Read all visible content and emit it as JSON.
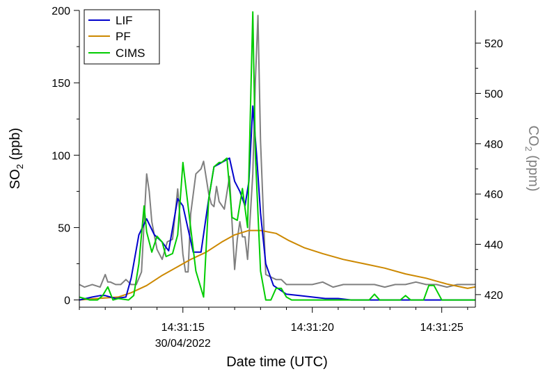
{
  "chart_data": {
    "type": "line",
    "xlabel": "Date time (UTC)",
    "x_ticks": [
      {
        "t": 15,
        "label": "14:31:15",
        "sublabel": "30/04/2022"
      },
      {
        "t": 20,
        "label": "14:31:20"
      },
      {
        "t": 25,
        "label": "14:31:25"
      }
    ],
    "xlim": [
      11.0,
      26.3
    ],
    "y_left": {
      "label_main": "SO",
      "label_sub": "2",
      "label_unit": " (ppb)",
      "lim": [
        -5,
        200
      ],
      "ticks": [
        0,
        50,
        100,
        150,
        200
      ]
    },
    "y_right": {
      "label_main": "CO",
      "label_sub": "2",
      "label_unit": " (ppm)",
      "lim": [
        415,
        533
      ],
      "ticks": [
        420,
        440,
        460,
        480,
        500,
        520
      ],
      "color": "#7f7f7f"
    },
    "legend": {
      "position": "top-left",
      "entries": [
        "LIF",
        "PF",
        "CIMS"
      ]
    },
    "series": [
      {
        "name": "LIF",
        "axis": "left",
        "color": "#0000cc",
        "x": [
          11.0,
          11.5,
          11.8,
          12.0,
          12.4,
          12.8,
          13.0,
          13.3,
          13.6,
          13.9,
          14.2,
          14.45,
          14.8,
          15.0,
          15.4,
          15.7,
          16.0,
          16.2,
          16.8,
          17.0,
          17.2,
          17.4,
          17.55,
          17.7,
          17.85,
          18.0,
          18.2,
          18.5,
          19.0,
          19.5,
          20.0,
          20.5,
          21.0,
          21.5,
          22.0,
          23.0,
          24.0,
          25.0,
          26.3
        ],
        "y": [
          0,
          2,
          3,
          3,
          1,
          2,
          15,
          45,
          56,
          45,
          40,
          34,
          70,
          65,
          33,
          33,
          70,
          92,
          98,
          82,
          75,
          65,
          82,
          134,
          100,
          60,
          25,
          10,
          4,
          3,
          2,
          1,
          1,
          0,
          0,
          0,
          0,
          0,
          0
        ]
      },
      {
        "name": "PF",
        "axis": "left",
        "color": "#cc8800",
        "x": [
          11.0,
          11.7,
          12.5,
          13.0,
          13.6,
          14.2,
          14.8,
          15.3,
          15.9,
          16.5,
          17.0,
          17.55,
          18.0,
          18.6,
          19.1,
          19.7,
          20.4,
          21.2,
          22.0,
          22.8,
          23.6,
          24.4,
          25.2,
          26.0,
          26.3
        ],
        "y": [
          0,
          1,
          2,
          5,
          10,
          17,
          23,
          28,
          33,
          40,
          45,
          48,
          48,
          46,
          41,
          36,
          32,
          28,
          25,
          22,
          18,
          15,
          11,
          8,
          9
        ]
      },
      {
        "name": "CIMS",
        "axis": "left",
        "color": "#00cc00",
        "x": [
          11.0,
          11.4,
          11.7,
          11.9,
          12.1,
          12.3,
          12.5,
          12.9,
          13.1,
          13.3,
          13.5,
          13.6,
          13.8,
          14.0,
          14.2,
          14.35,
          14.6,
          14.8,
          15.0,
          15.3,
          15.5,
          15.8,
          16.0,
          16.2,
          16.4,
          16.5,
          16.7,
          16.9,
          17.1,
          17.3,
          17.5,
          17.7,
          17.8,
          18.0,
          18.2,
          18.4,
          18.6,
          18.8,
          19.0,
          19.2,
          19.5,
          20.0,
          20.5,
          21.0,
          21.5,
          22.0,
          22.2,
          22.4,
          22.6,
          23.0,
          23.4,
          23.6,
          23.8,
          24.0,
          24.3,
          24.5,
          24.7,
          25.0,
          25.5,
          26.3
        ],
        "y": [
          2,
          0,
          0,
          3,
          9,
          0,
          1,
          0,
          3,
          25,
          65,
          47,
          33,
          44,
          40,
          30,
          32,
          45,
          95,
          50,
          20,
          2,
          70,
          92,
          95,
          95,
          98,
          57,
          55,
          77,
          50,
          199,
          100,
          20,
          0,
          0,
          8,
          8,
          2,
          0,
          0,
          0,
          0,
          0,
          0,
          0,
          0,
          4,
          0,
          0,
          0,
          3,
          0,
          0,
          0,
          10,
          10,
          0,
          0,
          0
        ]
      },
      {
        "name": "CO2",
        "axis": "right",
        "color": "#7f7f7f",
        "x": [
          11.0,
          11.2,
          11.5,
          11.8,
          12.0,
          12.1,
          12.2,
          12.4,
          12.6,
          12.8,
          13.0,
          13.2,
          13.4,
          13.6,
          13.7,
          13.8,
          14.0,
          14.2,
          14.4,
          14.6,
          14.8,
          15.0,
          15.1,
          15.2,
          15.3,
          15.5,
          15.7,
          15.8,
          16.0,
          16.1,
          16.2,
          16.3,
          16.4,
          16.6,
          16.8,
          17.0,
          17.1,
          17.2,
          17.3,
          17.4,
          17.5,
          17.6,
          17.7,
          17.8,
          17.9,
          18.0,
          18.2,
          18.4,
          18.6,
          18.8,
          19.0,
          19.3,
          19.6,
          20.0,
          20.4,
          20.8,
          21.2,
          21.6,
          22.0,
          22.4,
          22.8,
          23.2,
          23.6,
          24.0,
          24.4,
          24.8,
          25.2,
          25.6,
          26.0,
          26.3
        ],
        "y": [
          424,
          423,
          424,
          423,
          428,
          425,
          425,
          424,
          424,
          426,
          424,
          424,
          429,
          468,
          461,
          449,
          438,
          434,
          441,
          442,
          462,
          436,
          429,
          429,
          452,
          468,
          470,
          473,
          460,
          456,
          455,
          463,
          457,
          454,
          467,
          430,
          442,
          449,
          443,
          443,
          434,
          451,
          468,
          505,
          531,
          481,
          428,
          427,
          426,
          426,
          424,
          424,
          424,
          424,
          425,
          423,
          424,
          424,
          424,
          424,
          423,
          424,
          424,
          425,
          424,
          424,
          423,
          424,
          424,
          424
        ]
      }
    ]
  }
}
